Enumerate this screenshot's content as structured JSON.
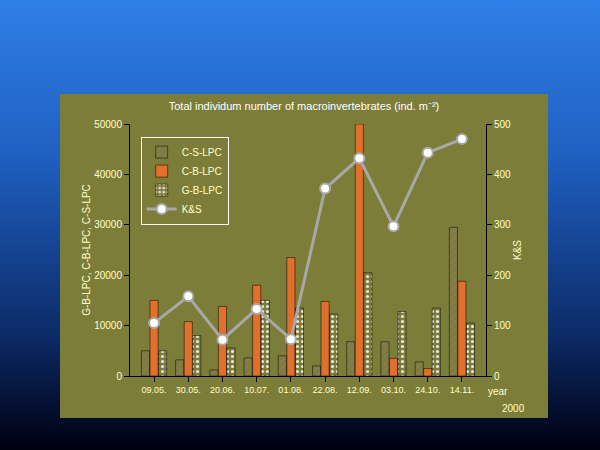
{
  "chart_data": {
    "type": "bar",
    "title": "Total individum number of macroinvertebrates (ind. m⁻²)",
    "y_label": "G-B-LPC, C-B-LPC, C-S-LPC",
    "y2_label": "K&S",
    "categories": [
      "09.05.",
      "30.05.",
      "20.06.",
      "10.07.",
      "01.08.",
      "22.08.",
      "12.09.",
      "03.10.",
      "24.10.",
      "14.11."
    ],
    "series": [
      {
        "name": "C-S-LPC",
        "color": "#f2ead8",
        "values": [
          5000,
          3200,
          1200,
          3600,
          4000,
          2000,
          6800,
          6800,
          2800,
          29500
        ]
      },
      {
        "name": "C-B-LPC",
        "color": "#e0702c",
        "values": [
          15000,
          10800,
          13800,
          18000,
          23500,
          14800,
          50000,
          3500,
          1500,
          18800
        ]
      },
      {
        "name": "G-B-LPC",
        "color": "#2a2a2a",
        "values": [
          5000,
          8000,
          5600,
          15000,
          13500,
          12300,
          20500,
          12800,
          13500,
          10500
        ]
      },
      {
        "name": "K&S",
        "type": "line",
        "axis": "y2",
        "color": "#a8a8a8",
        "marker": "circle",
        "line_style": "solid",
        "values": [
          105,
          158,
          72,
          133,
          73,
          372,
          432,
          297,
          443,
          470
        ]
      }
    ],
    "ylim": [
      0,
      50000
    ],
    "yticks": [
      0,
      10000,
      20000,
      30000,
      40000,
      50000
    ],
    "y2lim": [
      0,
      500
    ],
    "y2ticks": [
      0,
      100,
      200,
      300,
      400,
      500
    ],
    "legend": "upper left",
    "grid": false,
    "annotations": [
      "year",
      "2000"
    ]
  }
}
